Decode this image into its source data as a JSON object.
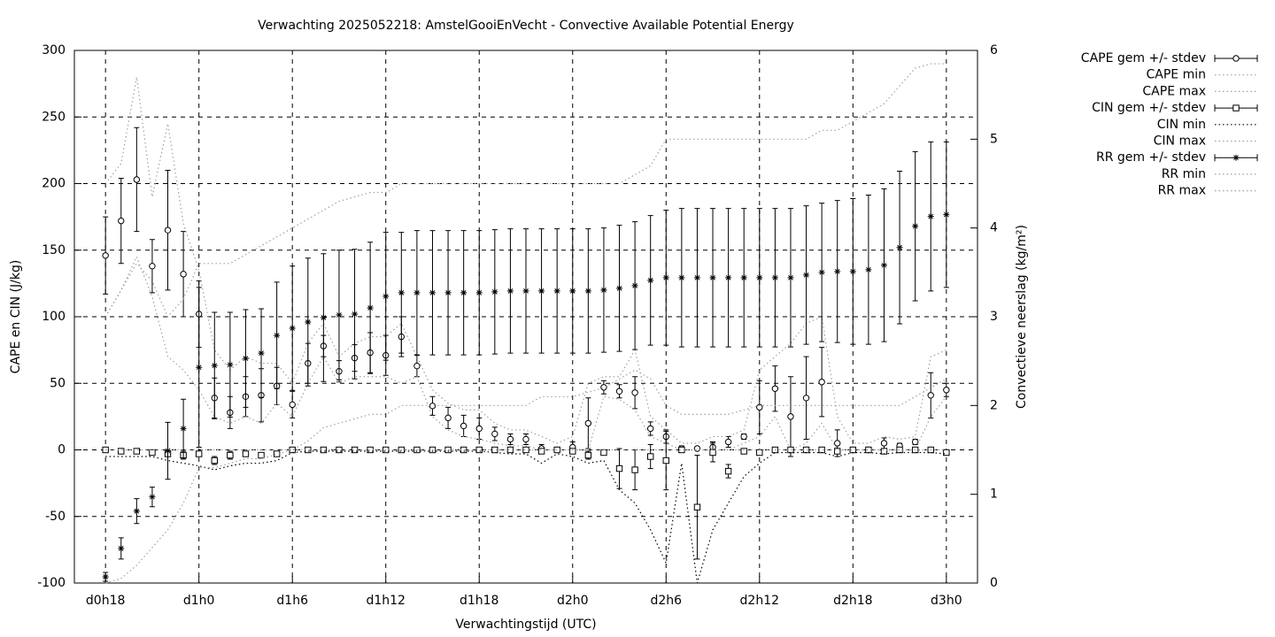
{
  "chart_data": {
    "type": "errorbars",
    "title": "Verwachting 2025052218: AmstelGooiEnVecht - Convective Available Potential Energy",
    "xlabel": "Verwachtingstijd (UTC)",
    "ylabel": "CAPE en CIN (J/kg)",
    "y2label": "Convectieve neerslag (kg/m²)",
    "grid": true,
    "legend": "outside right",
    "xlim": [
      16,
      74
    ],
    "xticks": [
      {
        "value": 18,
        "label": "d0h18"
      },
      {
        "value": 24,
        "label": "d1h0"
      },
      {
        "value": 30,
        "label": "d1h6"
      },
      {
        "value": 36,
        "label": "d1h12"
      },
      {
        "value": 42,
        "label": "d1h18"
      },
      {
        "value": 48,
        "label": "d2h0"
      },
      {
        "value": 54,
        "label": "d2h6"
      },
      {
        "value": 60,
        "label": "d2h12"
      },
      {
        "value": 66,
        "label": "d2h18"
      },
      {
        "value": 72,
        "label": "d3h0"
      }
    ],
    "ylim": [
      -100,
      300
    ],
    "yticks": [
      -100,
      -50,
      0,
      50,
      100,
      150,
      200,
      250,
      300
    ],
    "y2lim": [
      0,
      6
    ],
    "y2ticks": [
      0,
      1,
      2,
      3,
      4,
      5,
      6
    ],
    "x": [
      18,
      19,
      20,
      21,
      22,
      23,
      24,
      25,
      26,
      27,
      28,
      29,
      30,
      31,
      32,
      33,
      34,
      35,
      36,
      37,
      38,
      39,
      40,
      41,
      42,
      43,
      44,
      45,
      46,
      47,
      48,
      49,
      50,
      51,
      52,
      53,
      54,
      55,
      56,
      57,
      58,
      59,
      60,
      61,
      62,
      63,
      64,
      65,
      66,
      67,
      68,
      69,
      70,
      71,
      72
    ],
    "series": [
      {
        "name": "CAPE gem +/- stdev",
        "color": "#000000",
        "style": "errorbars",
        "marker": "circle",
        "values": [
          146,
          172,
          203,
          138,
          165,
          132,
          102,
          39,
          28,
          40,
          41,
          48,
          34,
          65,
          78,
          59,
          69,
          73,
          71,
          85,
          63,
          33,
          24,
          18,
          16,
          12,
          8,
          8,
          1,
          0,
          2,
          20,
          47,
          44,
          43,
          16,
          10,
          1,
          1,
          2,
          6,
          10,
          32,
          46,
          25,
          39,
          51,
          5,
          0,
          0,
          5,
          3,
          6,
          41,
          45
        ],
        "errors": [
          29,
          32,
          39,
          20,
          45,
          32,
          25,
          15,
          12,
          15,
          20,
          14,
          10,
          15,
          8,
          8,
          10,
          15,
          15,
          15,
          8,
          7,
          8,
          8,
          8,
          5,
          4,
          4,
          3,
          2,
          4,
          19,
          5,
          5,
          12,
          5,
          5,
          2,
          1,
          4,
          4,
          2,
          20,
          17,
          30,
          31,
          26,
          10,
          1,
          1,
          4,
          2,
          2,
          17,
          5
        ]
      },
      {
        "name": "CAPE min",
        "color": "#a0a0a0",
        "style": "dotted",
        "values": [
          100,
          120,
          145,
          115,
          70,
          60,
          45,
          25,
          20,
          25,
          20,
          35,
          25,
          50,
          70,
          50,
          55,
          55,
          55,
          50,
          55,
          25,
          15,
          10,
          8,
          5,
          3,
          3,
          0,
          0,
          0,
          0,
          40,
          38,
          30,
          10,
          5,
          0,
          0,
          0,
          0,
          5,
          10,
          25,
          0,
          5,
          20,
          0,
          0,
          0,
          0,
          0,
          0,
          25,
          40
        ]
      },
      {
        "name": "CAPE max",
        "color": "#a0a0a0",
        "style": "dotted",
        "values": [
          200,
          215,
          280,
          190,
          245,
          170,
          135,
          75,
          60,
          70,
          65,
          65,
          50,
          80,
          95,
          70,
          80,
          85,
          85,
          95,
          70,
          45,
          35,
          30,
          30,
          20,
          15,
          15,
          10,
          5,
          10,
          50,
          55,
          55,
          75,
          25,
          15,
          5,
          5,
          10,
          10,
          15,
          60,
          70,
          80,
          95,
          100,
          25,
          5,
          5,
          10,
          8,
          10,
          70,
          75
        ]
      },
      {
        "name": "CIN gem +/- stdev",
        "color": "#000000",
        "style": "errorbars",
        "marker": "square",
        "values": [
          0,
          -1,
          -1,
          -2,
          -3,
          -4,
          -3,
          -8,
          -4,
          -3,
          -4,
          -3,
          0,
          0,
          0,
          0,
          0,
          0,
          0,
          0,
          0,
          0,
          0,
          0,
          0,
          0,
          0,
          0,
          -1,
          0,
          -1,
          -4,
          -2,
          -14,
          -15,
          -5,
          -8,
          0,
          -43,
          -2,
          -16,
          -1,
          -2,
          0,
          0,
          0,
          0,
          -1,
          0,
          0,
          -1,
          0,
          0,
          0,
          -2
        ],
        "errors": [
          2,
          1,
          1,
          2,
          2,
          3,
          2,
          3,
          3,
          2,
          2,
          2,
          1,
          1,
          1,
          1,
          1,
          1,
          1,
          1,
          1,
          1,
          1,
          1,
          1,
          1,
          1,
          1,
          2,
          1,
          2,
          3,
          2,
          15,
          15,
          9,
          22,
          2,
          39,
          7,
          5,
          2,
          2,
          1,
          1,
          1,
          1,
          2,
          1,
          1,
          2,
          1,
          1,
          1,
          2
        ]
      },
      {
        "name": "CIN min",
        "color": "#000000",
        "style": "dotted",
        "values": [
          -5,
          -5,
          -5,
          -5,
          -8,
          -10,
          -12,
          -15,
          -12,
          -10,
          -10,
          -8,
          -2,
          -1,
          -1,
          -1,
          -1,
          -1,
          -1,
          -1,
          -1,
          -1,
          -1,
          -1,
          -1,
          -2,
          -3,
          -3,
          -10,
          -3,
          -5,
          -10,
          -8,
          -30,
          -40,
          -60,
          -85,
          -10,
          -100,
          -60,
          -40,
          -20,
          -10,
          -2,
          -2,
          -2,
          -2,
          -5,
          -2,
          -2,
          -3,
          -2,
          -2,
          -2,
          -3
        ]
      },
      {
        "name": "CIN max",
        "color": "#a0a0a0",
        "style": "dotted",
        "values": [
          0,
          0,
          0,
          0,
          0,
          0,
          0,
          0,
          0,
          0,
          0,
          0,
          0,
          0,
          0,
          0,
          0,
          0,
          0,
          0,
          0,
          0,
          0,
          0,
          0,
          0,
          0,
          0,
          0,
          0,
          0,
          0,
          0,
          0,
          0,
          0,
          0,
          0,
          0,
          0,
          0,
          0,
          0,
          0,
          0,
          0,
          0,
          0,
          0,
          0,
          0,
          0,
          0,
          0,
          0
        ]
      },
      {
        "name": "RR gem +/- stdev",
        "color": "#000000",
        "style": "errorbars",
        "marker": "star",
        "axis": "y2",
        "values": [
          0.07,
          0.39,
          0.81,
          0.97,
          1.49,
          1.74,
          2.43,
          2.45,
          2.46,
          2.53,
          2.59,
          2.79,
          2.87,
          2.94,
          2.99,
          3.02,
          3.03,
          3.1,
          3.23,
          3.27,
          3.27,
          3.27,
          3.27,
          3.27,
          3.27,
          3.28,
          3.29,
          3.29,
          3.29,
          3.29,
          3.29,
          3.29,
          3.3,
          3.32,
          3.35,
          3.41,
          3.44,
          3.44,
          3.44,
          3.44,
          3.44,
          3.44,
          3.44,
          3.44,
          3.44,
          3.47,
          3.5,
          3.51,
          3.51,
          3.53,
          3.58,
          3.78,
          4.02,
          4.13,
          4.15
        ],
        "errors": [
          0.05,
          0.12,
          0.14,
          0.11,
          0.32,
          0.33,
          0.9,
          0.6,
          0.59,
          0.55,
          0.5,
          0.6,
          0.7,
          0.72,
          0.72,
          0.73,
          0.73,
          0.74,
          0.72,
          0.68,
          0.7,
          0.7,
          0.7,
          0.7,
          0.7,
          0.7,
          0.7,
          0.7,
          0.7,
          0.7,
          0.7,
          0.7,
          0.7,
          0.71,
          0.72,
          0.73,
          0.76,
          0.78,
          0.78,
          0.78,
          0.78,
          0.78,
          0.78,
          0.78,
          0.78,
          0.78,
          0.78,
          0.8,
          0.82,
          0.84,
          0.86,
          0.86,
          0.84,
          0.84,
          0.82
        ]
      },
      {
        "name": "RR min",
        "color": "#a0a0a0",
        "style": "dotted",
        "axis": "y2",
        "values": [
          0,
          0.05,
          0.2,
          0.4,
          0.6,
          0.9,
          1.3,
          1.3,
          1.35,
          1.4,
          1.4,
          1.45,
          1.5,
          1.6,
          1.75,
          1.8,
          1.85,
          1.9,
          1.9,
          2.0,
          2.0,
          2.0,
          2.0,
          2.0,
          2.0,
          2.0,
          2.0,
          2.0,
          2.1,
          2.1,
          2.1,
          2.15,
          2.2,
          2.3,
          2.4,
          2.3,
          2.0,
          1.9,
          1.9,
          1.9,
          1.9,
          1.95,
          2.0,
          2.0,
          2.0,
          2.0,
          2.0,
          2.0,
          2.0,
          2.0,
          2.0,
          2.0,
          2.1,
          2.2,
          2.3
        ]
      },
      {
        "name": "RR max",
        "color": "#a0a0a0",
        "style": "dotted",
        "axis": "y2",
        "values": [
          3.0,
          3.3,
          3.6,
          3.4,
          3.0,
          3.2,
          3.6,
          3.6,
          3.6,
          3.7,
          3.8,
          3.9,
          4.0,
          4.1,
          4.2,
          4.3,
          4.35,
          4.4,
          4.4,
          4.5,
          4.5,
          4.5,
          4.5,
          4.5,
          4.5,
          4.5,
          4.5,
          4.5,
          4.5,
          4.5,
          4.5,
          4.5,
          4.5,
          4.5,
          4.6,
          4.7,
          5.0,
          5.0,
          5.0,
          5.0,
          5.0,
          5.0,
          5.0,
          5.0,
          5.0,
          5.0,
          5.1,
          5.1,
          5.2,
          5.3,
          5.4,
          5.6,
          5.8,
          5.85,
          5.85
        ]
      }
    ]
  }
}
